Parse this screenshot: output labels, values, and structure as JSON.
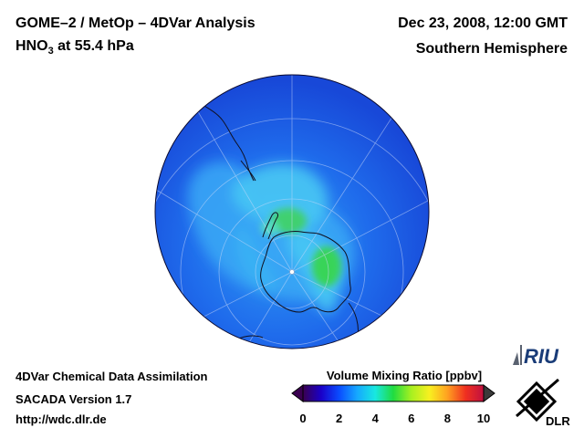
{
  "header": {
    "title": "GOME–2 / MetOp – 4DVar Analysis",
    "species": "HNO",
    "species_sub": "3",
    "level": " at 55.4 hPa",
    "date": "Dec 23, 2008, 12:00 GMT",
    "hemisphere": "Southern Hemisphere"
  },
  "footer": {
    "line1": "4DVar Chemical Data Assimilation",
    "line2": "SACADA Version 1.7",
    "line3": "http://wdc.dlr.de"
  },
  "colorbar": {
    "title": "Volume Mixing Ratio [ppbv]",
    "ticks": [
      "0",
      "2",
      "4",
      "6",
      "8",
      "10"
    ],
    "min": 0,
    "max": 10,
    "stops": [
      "#3a0050",
      "#1a00c8",
      "#0a4cff",
      "#16a8ff",
      "#18e8e0",
      "#20dc40",
      "#a8f020",
      "#f8f020",
      "#ffa020",
      "#f03020",
      "#c01040"
    ]
  },
  "logos": {
    "riu": "RIU",
    "dlr": "DLR"
  },
  "colors": {
    "ocean_blue": "#1a5ce8",
    "mid_blue": "#2a88f0",
    "light_blue": "#40b4f8",
    "green": "#40d860",
    "coast": "#101020"
  }
}
